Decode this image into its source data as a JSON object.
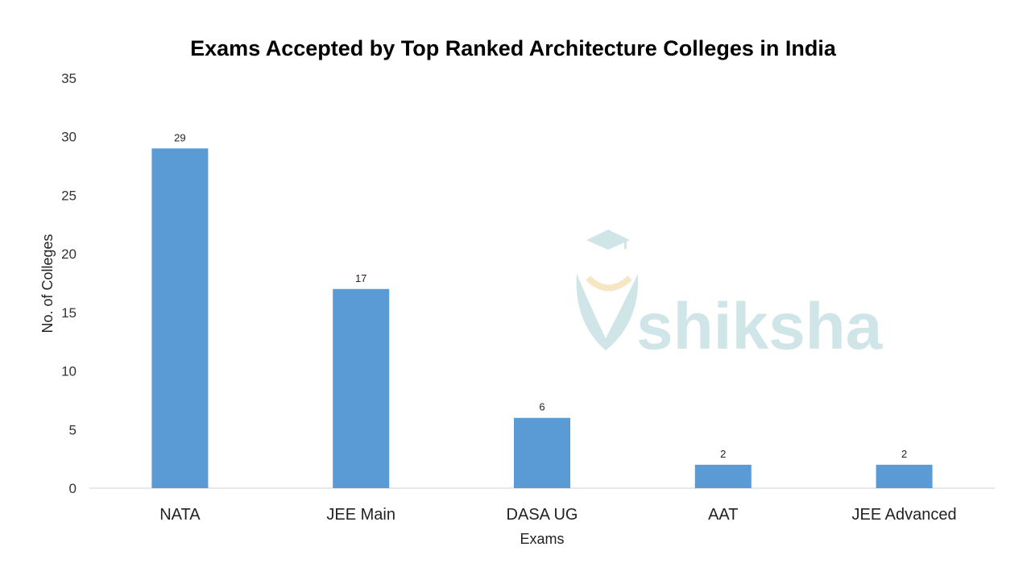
{
  "chart_data": {
    "type": "bar",
    "title": "Exams Accepted by Top Ranked Architecture Colleges in India",
    "xlabel": "Exams",
    "ylabel": "No. of Colleges",
    "categories": [
      "NATA",
      "JEE Main",
      "DASA UG",
      "AAT",
      "JEE Advanced"
    ],
    "values": [
      29,
      17,
      6,
      2,
      2
    ],
    "ylim": [
      0,
      35
    ],
    "yticks": [
      0,
      5,
      10,
      15,
      20,
      25,
      30,
      35
    ],
    "grid": false,
    "legend": "none",
    "data_labels": true,
    "bar_color": "#5B9BD5"
  },
  "watermark": {
    "text": "shiksha",
    "color": "#cfe5e8",
    "accent": "#f7e6c4"
  }
}
